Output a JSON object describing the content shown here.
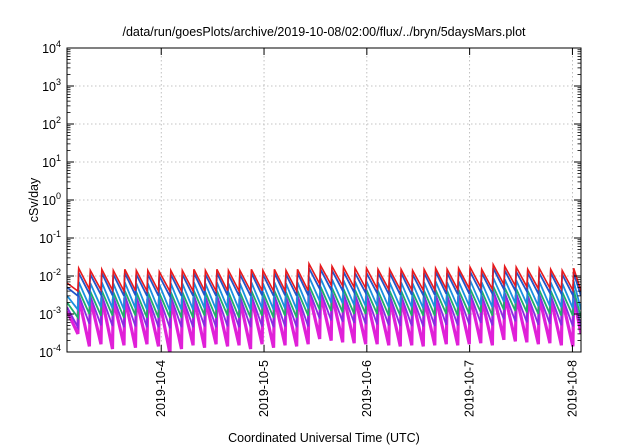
{
  "chart_data": {
    "type": "line",
    "title": "/data/run/goesPlots/archive/2019-10-08/02:00/flux/../bryn/5daysMars.plot",
    "xlabel": "Coordinated Universal Time (UTC)",
    "ylabel": "cSv/day",
    "yscale": "log",
    "ylim": [
      0.0001,
      10000
    ],
    "xlim": [
      "2019-10-03T02:00",
      "2019-10-08T02:00"
    ],
    "grid": true,
    "legend": "none",
    "y_ticks": [
      {
        "base": "10",
        "exp": "-4",
        "value": 0.0001
      },
      {
        "base": "10",
        "exp": "-3",
        "value": 0.001
      },
      {
        "base": "10",
        "exp": "-2",
        "value": 0.01
      },
      {
        "base": "10",
        "exp": "-1",
        "value": 0.1
      },
      {
        "base": "10",
        "exp": "0",
        "value": 1
      },
      {
        "base": "10",
        "exp": "1",
        "value": 10
      },
      {
        "base": "10",
        "exp": "2",
        "value": 100
      },
      {
        "base": "10",
        "exp": "3",
        "value": 1000
      },
      {
        "base": "10",
        "exp": "4",
        "value": 10000
      }
    ],
    "x_ticks": [
      {
        "label": "2019-10-4",
        "t": "2019-10-04T00:00"
      },
      {
        "label": "2019-10-5",
        "t": "2019-10-05T00:00"
      },
      {
        "label": "2019-10-6",
        "t": "2019-10-06T00:00"
      },
      {
        "label": "2019-10-7",
        "t": "2019-10-07T00:00"
      },
      {
        "label": "2019-10-8",
        "t": "2019-10-08T00:00"
      }
    ],
    "series": [
      {
        "color": "#e8191c",
        "peaks": [
          0.0065,
          0.016,
          0.014,
          0.015,
          0.014,
          0.015,
          0.014,
          0.014,
          0.013,
          0.014,
          0.014,
          0.015,
          0.014,
          0.015,
          0.014,
          0.014,
          0.015,
          0.014,
          0.015,
          0.014,
          0.015,
          0.021,
          0.019,
          0.018,
          0.017,
          0.016,
          0.016,
          0.015,
          0.015,
          0.015,
          0.014,
          0.015,
          0.016,
          0.015,
          0.016,
          0.017,
          0.015,
          0.02,
          0.018,
          0.017,
          0.015,
          0.016,
          0.015,
          0.014,
          0.016
        ],
        "troughs": [
          0.004,
          0.0045,
          0.0043,
          0.0042,
          0.004,
          0.0041,
          0.004,
          0.004,
          0.0039,
          0.004,
          0.004,
          0.0041,
          0.004,
          0.0041,
          0.004,
          0.004,
          0.0041,
          0.004,
          0.0041,
          0.004,
          0.0041,
          0.0062,
          0.0058,
          0.0055,
          0.005,
          0.0048,
          0.0047,
          0.0044,
          0.0043,
          0.0043,
          0.0042,
          0.0043,
          0.0045,
          0.0044,
          0.0046,
          0.005,
          0.0045,
          0.006,
          0.0055,
          0.0052,
          0.0046,
          0.0048,
          0.0045,
          0.0042,
          0.004
        ]
      },
      {
        "color": "#2154c9",
        "peaks": [
          0.005,
          0.012,
          0.011,
          0.012,
          0.011,
          0.012,
          0.011,
          0.011,
          0.01,
          0.011,
          0.011,
          0.012,
          0.011,
          0.012,
          0.011,
          0.011,
          0.012,
          0.011,
          0.012,
          0.011,
          0.012,
          0.016,
          0.015,
          0.014,
          0.013,
          0.012,
          0.012,
          0.012,
          0.012,
          0.012,
          0.011,
          0.012,
          0.013,
          0.012,
          0.013,
          0.013,
          0.012,
          0.016,
          0.014,
          0.013,
          0.012,
          0.012,
          0.012,
          0.011,
          0.012
        ],
        "troughs": [
          0.003,
          0.0034,
          0.0032,
          0.0031,
          0.003,
          0.0031,
          0.003,
          0.003,
          0.0029,
          0.003,
          0.003,
          0.0031,
          0.003,
          0.0031,
          0.003,
          0.003,
          0.0031,
          0.003,
          0.0031,
          0.003,
          0.0031,
          0.0046,
          0.0043,
          0.0041,
          0.0037,
          0.0036,
          0.0035,
          0.0033,
          0.0032,
          0.0032,
          0.0031,
          0.0032,
          0.0034,
          0.0033,
          0.0034,
          0.0037,
          0.0034,
          0.0045,
          0.0041,
          0.0039,
          0.0034,
          0.0036,
          0.0034,
          0.0031,
          0.003
        ]
      },
      {
        "color": "#1a8fe0",
        "peaks": [
          0.003,
          0.007,
          0.0065,
          0.0068,
          0.0064,
          0.0068,
          0.0064,
          0.0064,
          0.006,
          0.0064,
          0.0064,
          0.0068,
          0.0064,
          0.0068,
          0.0064,
          0.0064,
          0.0068,
          0.0064,
          0.0068,
          0.0064,
          0.0068,
          0.0095,
          0.0088,
          0.0082,
          0.0077,
          0.0072,
          0.0072,
          0.0068,
          0.0068,
          0.0068,
          0.0064,
          0.0068,
          0.0072,
          0.0068,
          0.0072,
          0.0077,
          0.0068,
          0.009,
          0.0082,
          0.0077,
          0.0068,
          0.0072,
          0.0068,
          0.0064,
          0.0072
        ],
        "troughs": [
          0.0013,
          0.0016,
          0.0015,
          0.0014,
          0.0013,
          0.0014,
          0.0013,
          0.0013,
          0.0012,
          0.0013,
          0.0013,
          0.0014,
          0.0013,
          0.0014,
          0.0013,
          0.0013,
          0.0014,
          0.0013,
          0.0014,
          0.0013,
          0.0014,
          0.0022,
          0.002,
          0.0019,
          0.0017,
          0.0016,
          0.0016,
          0.0015,
          0.0015,
          0.0015,
          0.0014,
          0.0015,
          0.0016,
          0.0015,
          0.0016,
          0.0017,
          0.0015,
          0.0021,
          0.0019,
          0.0018,
          0.0016,
          0.0016,
          0.0015,
          0.0014,
          0.0013
        ]
      },
      {
        "color": "#1fae6a",
        "peaks": [
          0.002,
          0.0042,
          0.0039,
          0.0041,
          0.0038,
          0.0041,
          0.0038,
          0.0038,
          0.0036,
          0.0038,
          0.0038,
          0.0041,
          0.0038,
          0.0041,
          0.0038,
          0.0038,
          0.0041,
          0.0038,
          0.0041,
          0.0038,
          0.0041,
          0.0057,
          0.0053,
          0.0049,
          0.0046,
          0.0043,
          0.0043,
          0.0041,
          0.0041,
          0.0041,
          0.0038,
          0.0041,
          0.0043,
          0.0041,
          0.0043,
          0.0046,
          0.0041,
          0.0054,
          0.0049,
          0.0046,
          0.0041,
          0.0043,
          0.0041,
          0.0038,
          0.0043
        ],
        "troughs": [
          0.0008,
          0.001,
          0.0009,
          0.0009,
          0.0008,
          0.0009,
          0.0008,
          0.0008,
          0.0008,
          0.0008,
          0.0008,
          0.0009,
          0.0008,
          0.0009,
          0.0008,
          0.0008,
          0.0009,
          0.0008,
          0.0009,
          0.0008,
          0.0009,
          0.0013,
          0.0012,
          0.0011,
          0.001,
          0.001,
          0.001,
          0.0009,
          0.0009,
          0.0009,
          0.0009,
          0.0009,
          0.001,
          0.0009,
          0.001,
          0.0011,
          0.0009,
          0.0013,
          0.0012,
          0.0011,
          0.001,
          0.001,
          0.0009,
          0.0009,
          0.0008
        ]
      },
      {
        "color": "#8a2be2",
        "peaks": [
          0.0015,
          0.0032,
          0.003,
          0.0031,
          0.0029,
          0.0031,
          0.0029,
          0.0029,
          0.0027,
          0.0029,
          0.0029,
          0.0031,
          0.0029,
          0.0031,
          0.0029,
          0.0029,
          0.0031,
          0.0029,
          0.0031,
          0.0029,
          0.0031,
          0.0043,
          0.004,
          0.0037,
          0.0035,
          0.0033,
          0.0033,
          0.0031,
          0.0031,
          0.0031,
          0.0029,
          0.0031,
          0.0033,
          0.0031,
          0.0033,
          0.0035,
          0.0031,
          0.0041,
          0.0037,
          0.0035,
          0.0031,
          0.0033,
          0.0031,
          0.0029,
          0.0033
        ],
        "troughs": [
          0.00045,
          0.00055,
          0.0005,
          0.00048,
          0.00045,
          0.00047,
          0.00045,
          0.00045,
          0.00042,
          0.00045,
          0.00045,
          0.00047,
          0.00045,
          0.00047,
          0.00045,
          0.00045,
          0.00047,
          0.00045,
          0.00047,
          0.00045,
          0.00047,
          0.00075,
          0.00068,
          0.00062,
          0.00058,
          0.00054,
          0.00053,
          0.0005,
          0.00048,
          0.00048,
          0.00047,
          0.00048,
          0.00052,
          0.0005,
          0.00053,
          0.00058,
          0.0005,
          0.00072,
          0.00064,
          0.0006,
          0.00052,
          0.00055,
          0.0005,
          0.00047,
          0.00045
        ]
      },
      {
        "color": "#e020d8",
        "peaks": [
          0.0012,
          0.0028,
          0.0026,
          0.0027,
          0.0025,
          0.0027,
          0.0025,
          0.0025,
          0.0024,
          0.0025,
          0.0025,
          0.0027,
          0.0025,
          0.0027,
          0.0025,
          0.0025,
          0.0027,
          0.0025,
          0.0027,
          0.0025,
          0.0027,
          0.0038,
          0.0035,
          0.0033,
          0.0031,
          0.0029,
          0.0029,
          0.0027,
          0.0027,
          0.0027,
          0.0025,
          0.0027,
          0.0029,
          0.0027,
          0.0029,
          0.0031,
          0.0027,
          0.0036,
          0.0033,
          0.0031,
          0.0027,
          0.0029,
          0.0027,
          0.0025,
          0.0029
        ],
        "troughs": [
          0.0003,
          0.00014,
          0.00016,
          0.00012,
          0.00015,
          0.00013,
          0.00016,
          0.00014,
          9e-05,
          0.00012,
          0.00015,
          0.00013,
          0.00016,
          0.00014,
          0.00015,
          0.00012,
          0.00016,
          0.00013,
          0.00015,
          0.00014,
          0.00016,
          0.00022,
          0.0002,
          0.00018,
          0.00017,
          0.00016,
          0.00016,
          0.00015,
          0.00014,
          0.00015,
          0.00014,
          0.00015,
          0.00016,
          0.00015,
          0.00016,
          0.00017,
          0.00015,
          0.00021,
          0.00019,
          0.00018,
          0.00016,
          0.00017,
          0.00015,
          0.00014,
          0.0003
        ]
      }
    ]
  }
}
